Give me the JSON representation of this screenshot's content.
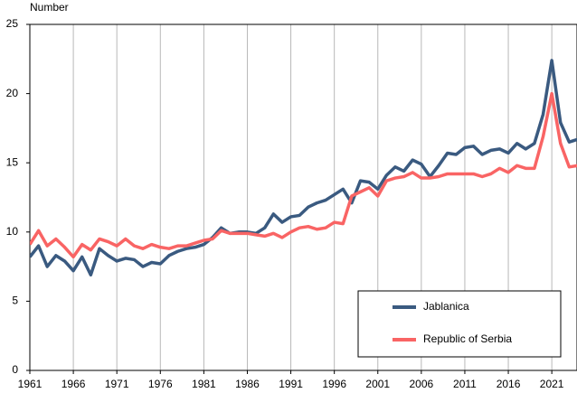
{
  "chart_data": {
    "type": "line",
    "y_label": "Number",
    "x": [
      1961,
      1962,
      1963,
      1964,
      1965,
      1966,
      1967,
      1968,
      1969,
      1970,
      1971,
      1972,
      1973,
      1974,
      1975,
      1976,
      1977,
      1978,
      1979,
      1980,
      1981,
      1982,
      1983,
      1984,
      1985,
      1986,
      1987,
      1988,
      1989,
      1990,
      1991,
      1992,
      1993,
      1994,
      1995,
      1996,
      1997,
      1998,
      1999,
      2000,
      2001,
      2002,
      2003,
      2004,
      2005,
      2006,
      2007,
      2008,
      2009,
      2010,
      2011,
      2012,
      2013,
      2014,
      2015,
      2016,
      2017,
      2018,
      2019,
      2020,
      2021,
      2022,
      2023,
      2024
    ],
    "series": [
      {
        "name": "Jablanica",
        "color": "#3a5a80",
        "values": [
          8.2,
          9.0,
          7.5,
          8.3,
          7.9,
          7.2,
          8.2,
          6.9,
          8.8,
          8.3,
          7.9,
          8.1,
          8.0,
          7.5,
          7.8,
          7.7,
          8.3,
          8.6,
          8.8,
          8.9,
          9.1,
          9.6,
          10.3,
          9.9,
          10.0,
          10.0,
          9.9,
          10.3,
          11.3,
          10.7,
          11.1,
          11.2,
          11.8,
          12.1,
          12.3,
          12.7,
          13.1,
          12.1,
          13.7,
          13.6,
          13.1,
          14.1,
          14.7,
          14.4,
          15.2,
          14.9,
          14.0,
          14.8,
          15.7,
          15.6,
          16.1,
          16.2,
          15.6,
          15.9,
          16.0,
          15.7,
          16.4,
          16.0,
          16.4,
          18.5,
          22.4,
          17.9,
          16.5,
          16.7
        ]
      },
      {
        "name": "Republic of Serbia",
        "color": "#f96464",
        "values": [
          9.1,
          10.1,
          9.0,
          9.5,
          8.9,
          8.2,
          9.1,
          8.7,
          9.5,
          9.3,
          9.0,
          9.5,
          9.0,
          8.8,
          9.1,
          8.9,
          8.8,
          9.0,
          9.0,
          9.2,
          9.4,
          9.5,
          10.1,
          9.9,
          9.9,
          9.9,
          9.8,
          9.7,
          9.9,
          9.6,
          10.0,
          10.3,
          10.4,
          10.2,
          10.3,
          10.7,
          10.6,
          12.6,
          12.9,
          13.2,
          12.6,
          13.7,
          13.9,
          14.0,
          14.3,
          13.9,
          13.9,
          14.0,
          14.2,
          14.2,
          14.2,
          14.2,
          14.0,
          14.2,
          14.6,
          14.3,
          14.8,
          14.6,
          14.6,
          16.9,
          20.0,
          16.4,
          14.7,
          14.8
        ]
      }
    ],
    "xlim": [
      1961,
      2024
    ],
    "xticks": [
      1961,
      1966,
      1971,
      1976,
      1981,
      1986,
      1991,
      1996,
      2001,
      2006,
      2011,
      2016,
      2021
    ],
    "ylim": [
      0,
      25
    ],
    "yticks": [
      0,
      5,
      10,
      15,
      20,
      25
    ],
    "grid": "x",
    "legend": "lower right"
  }
}
